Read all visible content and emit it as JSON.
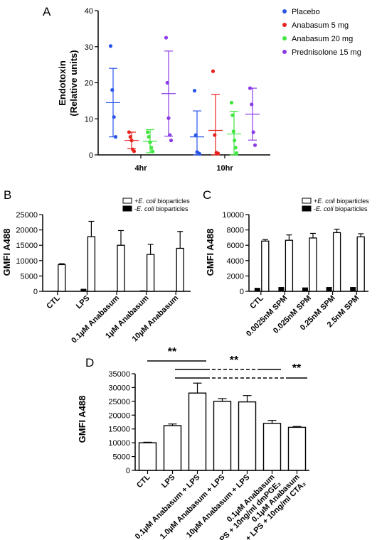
{
  "chart_data": [
    {
      "panel": "A",
      "type": "scatter",
      "ylabel_line1": "Endotoxin",
      "ylabel_line2": "(Relative units)",
      "ylim": [
        0,
        40
      ],
      "yticks": [
        0,
        10,
        20,
        30,
        40
      ],
      "categories": [
        "4hr",
        "10hr"
      ],
      "legend_position": "top-right",
      "grid": false,
      "series": [
        {
          "name": "Placebo",
          "color": "#2a56e8",
          "points": [
            [
              30.2,
              18.0,
              10.5,
              5.0
            ],
            [
              17.8,
              5.5,
              0.8,
              0.5,
              0.3
            ]
          ],
          "mean": [
            14.5,
            5.0
          ],
          "sd": [
            9.5,
            7.2
          ]
        },
        {
          "name": "Anabasum 5 mg",
          "color": "#e8231e",
          "points": [
            [
              6.3,
              5.0,
              4.0,
              1.5,
              1.0
            ],
            [
              23.2,
              5.5,
              0.6,
              0.4
            ]
          ],
          "mean": [
            4.0,
            6.8
          ],
          "sd": [
            2.3,
            10.0
          ]
        },
        {
          "name": "Anabasum 20 mg",
          "color": "#3ee63e",
          "points": [
            [
              6.3,
              5.0,
              3.5,
              2.0,
              1.0
            ],
            [
              14.5,
              11.0,
              6.5,
              4.0,
              2.0,
              0.5
            ]
          ],
          "mean": [
            3.8,
            5.8
          ],
          "sd": [
            3.2,
            6.3
          ]
        },
        {
          "name": "Prednisolone 15 mg",
          "color": "#8a3ce6",
          "points": [
            [
              32.5,
              20.0,
              10.2,
              5.5,
              4.0
            ],
            [
              18.5,
              14.0,
              6.3,
              2.7
            ]
          ],
          "mean": [
            17.0,
            11.3
          ],
          "sd": [
            11.8,
            7.2
          ]
        }
      ],
      "label": "A"
    },
    {
      "panel": "B",
      "type": "bar",
      "ylabel": "GMFI A488",
      "ylim": [
        0,
        25000
      ],
      "yticks": [
        0,
        5000,
        10000,
        15000,
        20000,
        25000
      ],
      "categories": [
        "CTL",
        "LPS",
        "0.1µM Anabasum",
        "1µM Anabasum",
        "10µM Anabasum"
      ],
      "legend_position": "top-right",
      "series": [
        {
          "name": "-E. coli bioparticles",
          "fill": "#000000",
          "values": [
            150,
            800,
            150,
            300,
            150
          ],
          "err": [
            0,
            0,
            0,
            0,
            0
          ]
        },
        {
          "name": "+E. coli bioparticles",
          "fill": "#ffffff",
          "values": [
            8700,
            17800,
            15000,
            12000,
            14000
          ],
          "err": [
            300,
            5000,
            4800,
            3300,
            5500
          ]
        }
      ],
      "label": "B",
      "legend_entries": [
        {
          "prefix": "+",
          "italic": "E. coli",
          "suffix": " bioparticles",
          "fill": "#ffffff"
        },
        {
          "prefix": "-",
          "italic": "E. coli",
          "suffix": " bioparticles",
          "fill": "#000000"
        }
      ]
    },
    {
      "panel": "C",
      "type": "bar",
      "ylabel": "GMFI A488",
      "ylim": [
        0,
        10000
      ],
      "yticks": [
        0,
        2000,
        4000,
        6000,
        8000,
        10000
      ],
      "categories": [
        "CTL",
        "0.0025nM SPM",
        "0.025nM SPM",
        "0.25nM SPM",
        "2.5nM SPM"
      ],
      "legend_position": "top-right",
      "series": [
        {
          "name": "-E. coli bioparticles",
          "fill": "#000000",
          "values": [
            450,
            550,
            500,
            550,
            550
          ],
          "err": [
            0,
            0,
            0,
            0,
            0
          ]
        },
        {
          "name": "+E. coli bioparticles",
          "fill": "#ffffff",
          "values": [
            6550,
            6650,
            6950,
            7650,
            7100
          ],
          "err": [
            200,
            700,
            600,
            450,
            400
          ]
        }
      ],
      "label": "C",
      "legend_entries": [
        {
          "prefix": "+",
          "italic": "E. coli",
          "suffix": " bioparticles",
          "fill": "#ffffff"
        },
        {
          "prefix": "-",
          "italic": "E. coli",
          "suffix": " bioparticles",
          "fill": "#000000"
        }
      ]
    },
    {
      "panel": "D",
      "type": "bar",
      "ylabel": "GMFI A488",
      "ylim": [
        0,
        35000
      ],
      "yticks": [
        0,
        5000,
        10000,
        15000,
        20000,
        25000,
        30000,
        35000
      ],
      "categories": [
        [
          "CTL"
        ],
        [
          "LPS"
        ],
        [
          "0.1µM Anabasum + LPS"
        ],
        [
          "1.0µM Anabasum + LPS"
        ],
        [
          "10µM Anabasum + LPS"
        ],
        [
          "0.1µM Anabasum",
          "+ LPS + 10ng/ml dmPGE₂"
        ],
        [
          "0.1µM Anabasum",
          "+ LPS + 10ng/ml CTA₂"
        ]
      ],
      "values": [
        10000,
        16200,
        28000,
        25000,
        24800,
        17000,
        15600
      ],
      "err": [
        200,
        600,
        3600,
        1000,
        2300,
        1100,
        300
      ],
      "significance_label": "**",
      "label": "D"
    }
  ]
}
